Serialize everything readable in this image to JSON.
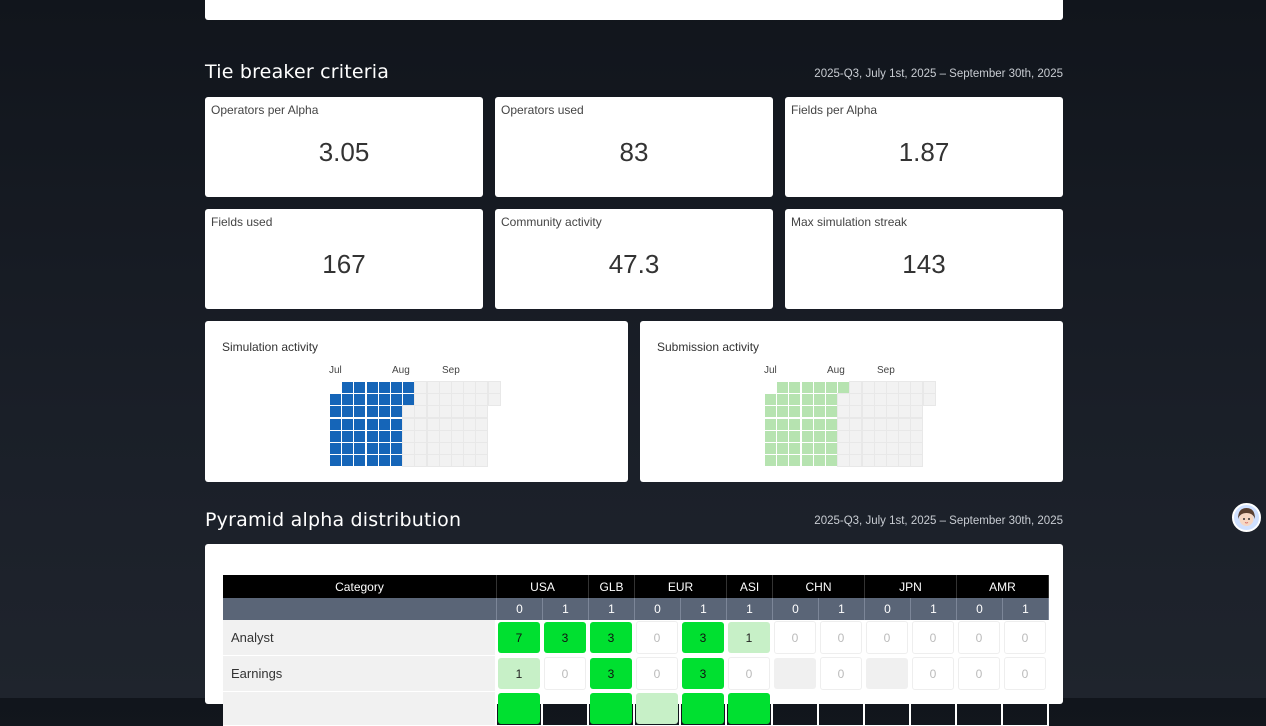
{
  "tie_breaker": {
    "title": "Tie breaker criteria",
    "date_range": "2025-Q3, July 1st, 2025 – September 30th, 2025",
    "cards": [
      {
        "label": "Operators per Alpha",
        "value": "3.05"
      },
      {
        "label": "Operators used",
        "value": "83"
      },
      {
        "label": "Fields per Alpha",
        "value": "1.87"
      },
      {
        "label": "Fields used",
        "value": "167"
      },
      {
        "label": "Community activity",
        "value": "47.3"
      },
      {
        "label": "Max simulation streak",
        "value": "143"
      }
    ],
    "simulation_activity": {
      "label": "Simulation activity",
      "months": [
        "Jul",
        "Aug",
        "Sep"
      ],
      "color": "#1565b8"
    },
    "submission_activity": {
      "label": "Submission activity",
      "months": [
        "Jul",
        "Aug",
        "Sep"
      ],
      "color": "#b6e3b0"
    }
  },
  "pyramid": {
    "title": "Pyramid alpha distribution",
    "date_range": "2025-Q3, July 1st, 2025 – September 30th, 2025",
    "header_category": "Category",
    "regions": [
      {
        "name": "USA",
        "levels": [
          "0",
          "1"
        ]
      },
      {
        "name": "GLB",
        "levels": [
          "1"
        ]
      },
      {
        "name": "EUR",
        "levels": [
          "0",
          "1"
        ]
      },
      {
        "name": "ASI",
        "levels": [
          "1"
        ]
      },
      {
        "name": "CHN",
        "levels": [
          "0",
          "1"
        ]
      },
      {
        "name": "JPN",
        "levels": [
          "0",
          "1"
        ]
      },
      {
        "name": "AMR",
        "levels": [
          "0",
          "1"
        ]
      }
    ],
    "rows": [
      {
        "category": "Analyst",
        "values": [
          "7",
          "3",
          "3",
          "0",
          "3",
          "1",
          "0",
          "0",
          "0",
          "0",
          "0",
          "0"
        ]
      },
      {
        "category": "Earnings",
        "values": [
          "1",
          "0",
          "3",
          "0",
          "3",
          "0",
          "",
          "0",
          "",
          "0",
          "0",
          "0"
        ]
      }
    ]
  },
  "colors": {
    "strong_green": "#00e030",
    "light_green": "#c7f0c7",
    "header_black": "#000000",
    "header_slate": "#5a6577"
  }
}
